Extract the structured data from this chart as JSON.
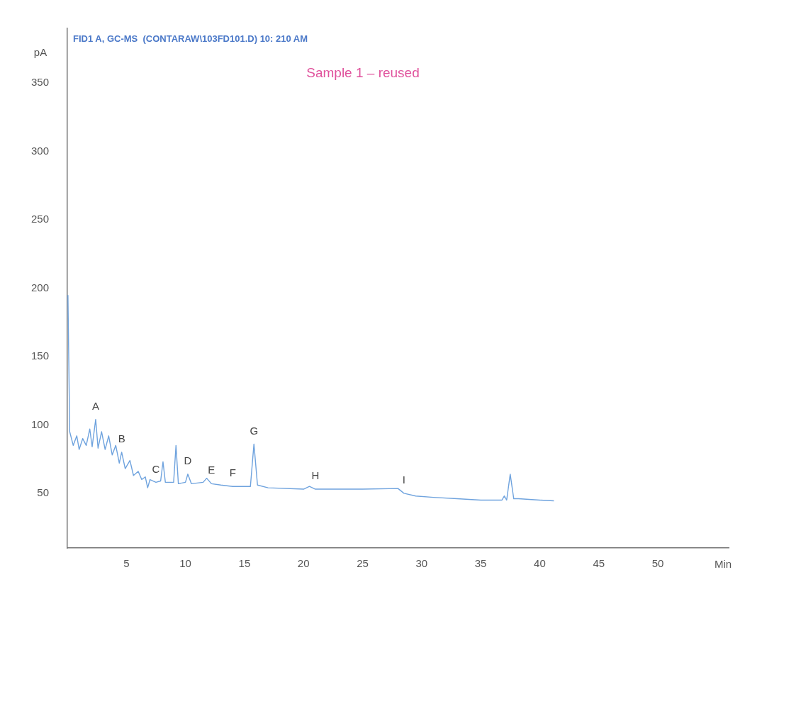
{
  "chart_data": {
    "type": "line",
    "title": "FID1 A, GC-MS  (CONTARAW\\103FD101.D) 10: 210 AM",
    "subtitle": "Sample 1 – reused",
    "xlabel": "Min",
    "ylabel": "pA",
    "x": [
      0.05,
      0.2,
      0.5,
      0.8,
      1.0,
      1.3,
      1.6,
      1.9,
      2.1,
      2.4,
      2.6,
      2.9,
      3.2,
      3.5,
      3.8,
      4.1,
      4.4,
      4.6,
      4.9,
      5.3,
      5.6,
      6.0,
      6.3,
      6.6,
      6.8,
      7.0,
      7.5,
      7.9,
      8.1,
      8.3,
      9.0,
      9.2,
      9.4,
      10.0,
      10.2,
      10.5,
      11.5,
      11.8,
      12.2,
      13,
      14,
      15.5,
      15.8,
      16.1,
      17,
      20,
      20.5,
      21,
      25,
      28,
      28.5,
      29.5,
      31,
      33,
      35,
      36.8,
      37.0,
      37.2,
      37.5,
      37.8,
      38.2,
      40,
      41.2
    ],
    "values": [
      195,
      95,
      85,
      92,
      82,
      90,
      85,
      97,
      84,
      104,
      83,
      95,
      82,
      92,
      78,
      85,
      72,
      80,
      68,
      74,
      63,
      66,
      60,
      62,
      54,
      60,
      58,
      59,
      73,
      58,
      58,
      85,
      57,
      58,
      64,
      57,
      58,
      61,
      57,
      56,
      55,
      55,
      86,
      56,
      54,
      53,
      55,
      53,
      53,
      53.5,
      50,
      48,
      47,
      46,
      45,
      45,
      48,
      45,
      64,
      46,
      46,
      45,
      44.5
    ],
    "color": "#6fa3de",
    "xlim": [
      0,
      56
    ],
    "xticks": [
      5,
      10,
      15,
      20,
      25,
      30,
      35,
      40,
      45,
      50
    ],
    "ylim": [
      10,
      390
    ],
    "yticks": [
      50,
      100,
      150,
      200,
      250,
      300,
      350
    ],
    "grid": false,
    "legend": false,
    "marker": "none",
    "line_style": "solid",
    "annotations": [
      {
        "text": "A",
        "x": 2.4,
        "y": 104
      },
      {
        "text": "B",
        "x": 4.6,
        "y": 80
      },
      {
        "text": "C",
        "x": 7.5,
        "y": 58
      },
      {
        "text": "D",
        "x": 10.2,
        "y": 64
      },
      {
        "text": "E",
        "x": 12.2,
        "y": 57
      },
      {
        "text": "F",
        "x": 14,
        "y": 55
      },
      {
        "text": "G",
        "x": 15.8,
        "y": 86
      },
      {
        "text": "H",
        "x": 21,
        "y": 53
      },
      {
        "text": "I",
        "x": 28.5,
        "y": 50
      }
    ]
  }
}
